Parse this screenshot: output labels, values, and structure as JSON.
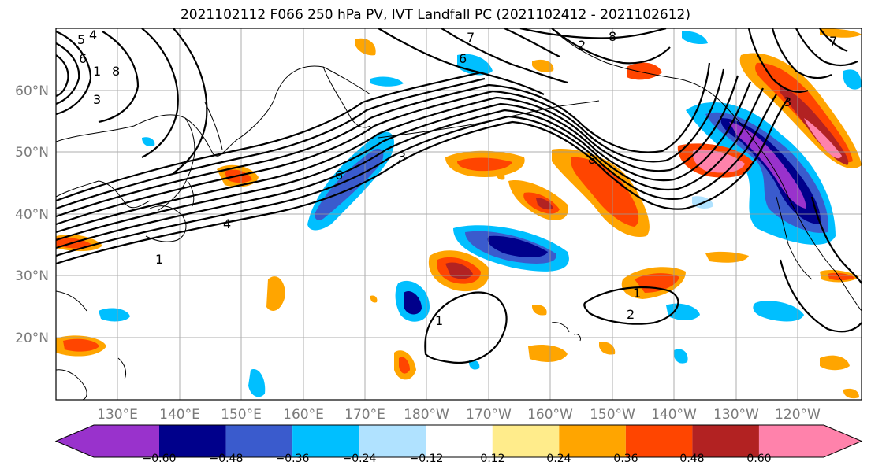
{
  "title": "2021102112 F066 250 hPa PV, IVT Landfall PC (2021102412 - 2021102612)",
  "map": {
    "lat_labels": [
      "60°N",
      "50°N",
      "40°N",
      "30°N",
      "20°N"
    ],
    "lon_labels": [
      "130°E",
      "140°E",
      "150°E",
      "160°E",
      "170°E",
      "180°W",
      "170°W",
      "160°W",
      "150°W",
      "140°W",
      "130°W",
      "120°W"
    ],
    "contour_labels": [
      "5",
      "4",
      "6",
      "1",
      "3",
      "8",
      "7",
      "2",
      "6",
      "3",
      "8",
      "1",
      "4",
      "6",
      "1",
      "3",
      "8",
      "7",
      "1",
      "2"
    ]
  },
  "colorbar": {
    "ticks": [
      "−0.60",
      "−0.48",
      "−0.36",
      "−0.24",
      "−0.12",
      "0.12",
      "0.24",
      "0.36",
      "0.48",
      "0.60"
    ],
    "colors": [
      "#9932cc",
      "#00008b",
      "#3a5bcd",
      "#00bfff",
      "#b0e2ff",
      "#ffffff",
      "#ffec8b",
      "#ffa500",
      "#ff4500",
      "#b22222",
      "#ff82ab"
    ]
  }
}
